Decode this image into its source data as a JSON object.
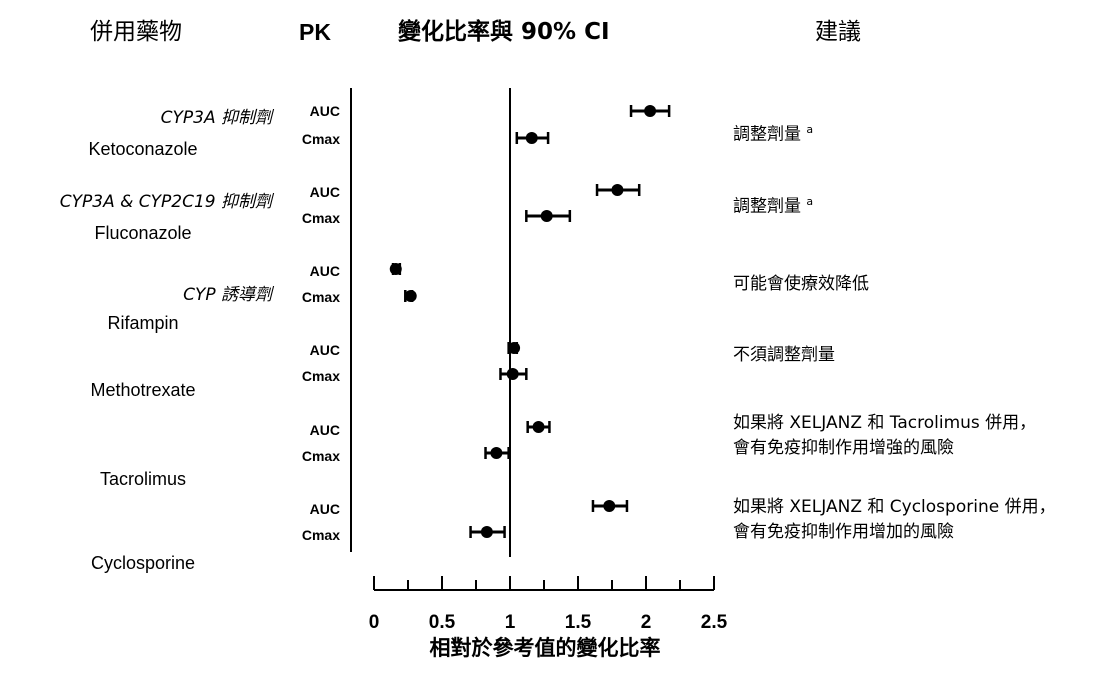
{
  "headers": {
    "drug": "併用藥物",
    "pk": "PK",
    "ratio": "變化比率與 90% CI",
    "recommendation": "建議"
  },
  "groups": [
    {
      "drug_class": "CYP3A 抑制劑",
      "drug": "Ketoconazole",
      "recommendation": [
        "調整劑量"
      ],
      "footnote": "a"
    },
    {
      "drug_class": "CYP3A & CYP2C19 抑制劑",
      "drug": "Fluconazole",
      "recommendation": [
        "調整劑量"
      ],
      "footnote": "a"
    },
    {
      "drug_class": "CYP 誘導劑",
      "drug": "Rifampin",
      "recommendation": [
        "可能會使療效降低"
      ],
      "footnote": ""
    },
    {
      "drug_class": "",
      "drug": "Methotrexate",
      "recommendation": [
        "不須調整劑量"
      ],
      "footnote": ""
    },
    {
      "drug_class": "",
      "drug": "Tacrolimus",
      "recommendation": [
        "如果將 XELJANZ 和 Tacrolimus 併用，",
        "會有免疫抑制作用增強的風險"
      ],
      "footnote": ""
    },
    {
      "drug_class": "",
      "drug": "Cyclosporine",
      "recommendation": [
        "如果將 XELJANZ 和 Cyclosporine 併用，",
        "會有免疫抑制作用增加的風險"
      ],
      "footnote": ""
    }
  ],
  "chart_data": {
    "type": "forest",
    "xlabel": "相對於參考值的變化比率",
    "xlim": [
      0,
      2.5
    ],
    "xticks": [
      0,
      0.5,
      1,
      1.5,
      2,
      2.5
    ],
    "xtick_labels": [
      "0",
      "0.5",
      "1",
      "1.5",
      "2",
      "2.5"
    ],
    "reference_line": 1,
    "rows": [
      {
        "drug": "Ketoconazole",
        "pk": "AUC",
        "ratio": 2.03,
        "ci": [
          1.89,
          2.17
        ]
      },
      {
        "drug": "Ketoconazole",
        "pk": "Cmax",
        "ratio": 1.16,
        "ci": [
          1.05,
          1.28
        ]
      },
      {
        "drug": "Fluconazole",
        "pk": "AUC",
        "ratio": 1.79,
        "ci": [
          1.64,
          1.95
        ]
      },
      {
        "drug": "Fluconazole",
        "pk": "Cmax",
        "ratio": 1.27,
        "ci": [
          1.12,
          1.44
        ]
      },
      {
        "drug": "Rifampin",
        "pk": "AUC",
        "ratio": 0.16,
        "ci": [
          0.14,
          0.19
        ]
      },
      {
        "drug": "Rifampin",
        "pk": "Cmax",
        "ratio": 0.27,
        "ci": [
          0.23,
          0.28
        ]
      },
      {
        "drug": "Methotrexate",
        "pk": "AUC",
        "ratio": 1.03,
        "ci": [
          0.99,
          1.05
        ]
      },
      {
        "drug": "Methotrexate",
        "pk": "Cmax",
        "ratio": 1.02,
        "ci": [
          0.93,
          1.12
        ]
      },
      {
        "drug": "Tacrolimus",
        "pk": "AUC",
        "ratio": 1.21,
        "ci": [
          1.13,
          1.29
        ]
      },
      {
        "drug": "Tacrolimus",
        "pk": "Cmax",
        "ratio": 0.9,
        "ci": [
          0.82,
          0.99
        ]
      },
      {
        "drug": "Cyclosporine",
        "pk": "AUC",
        "ratio": 1.73,
        "ci": [
          1.61,
          1.86
        ]
      },
      {
        "drug": "Cyclosporine",
        "pk": "Cmax",
        "ratio": 0.83,
        "ci": [
          0.71,
          0.96
        ]
      }
    ]
  }
}
